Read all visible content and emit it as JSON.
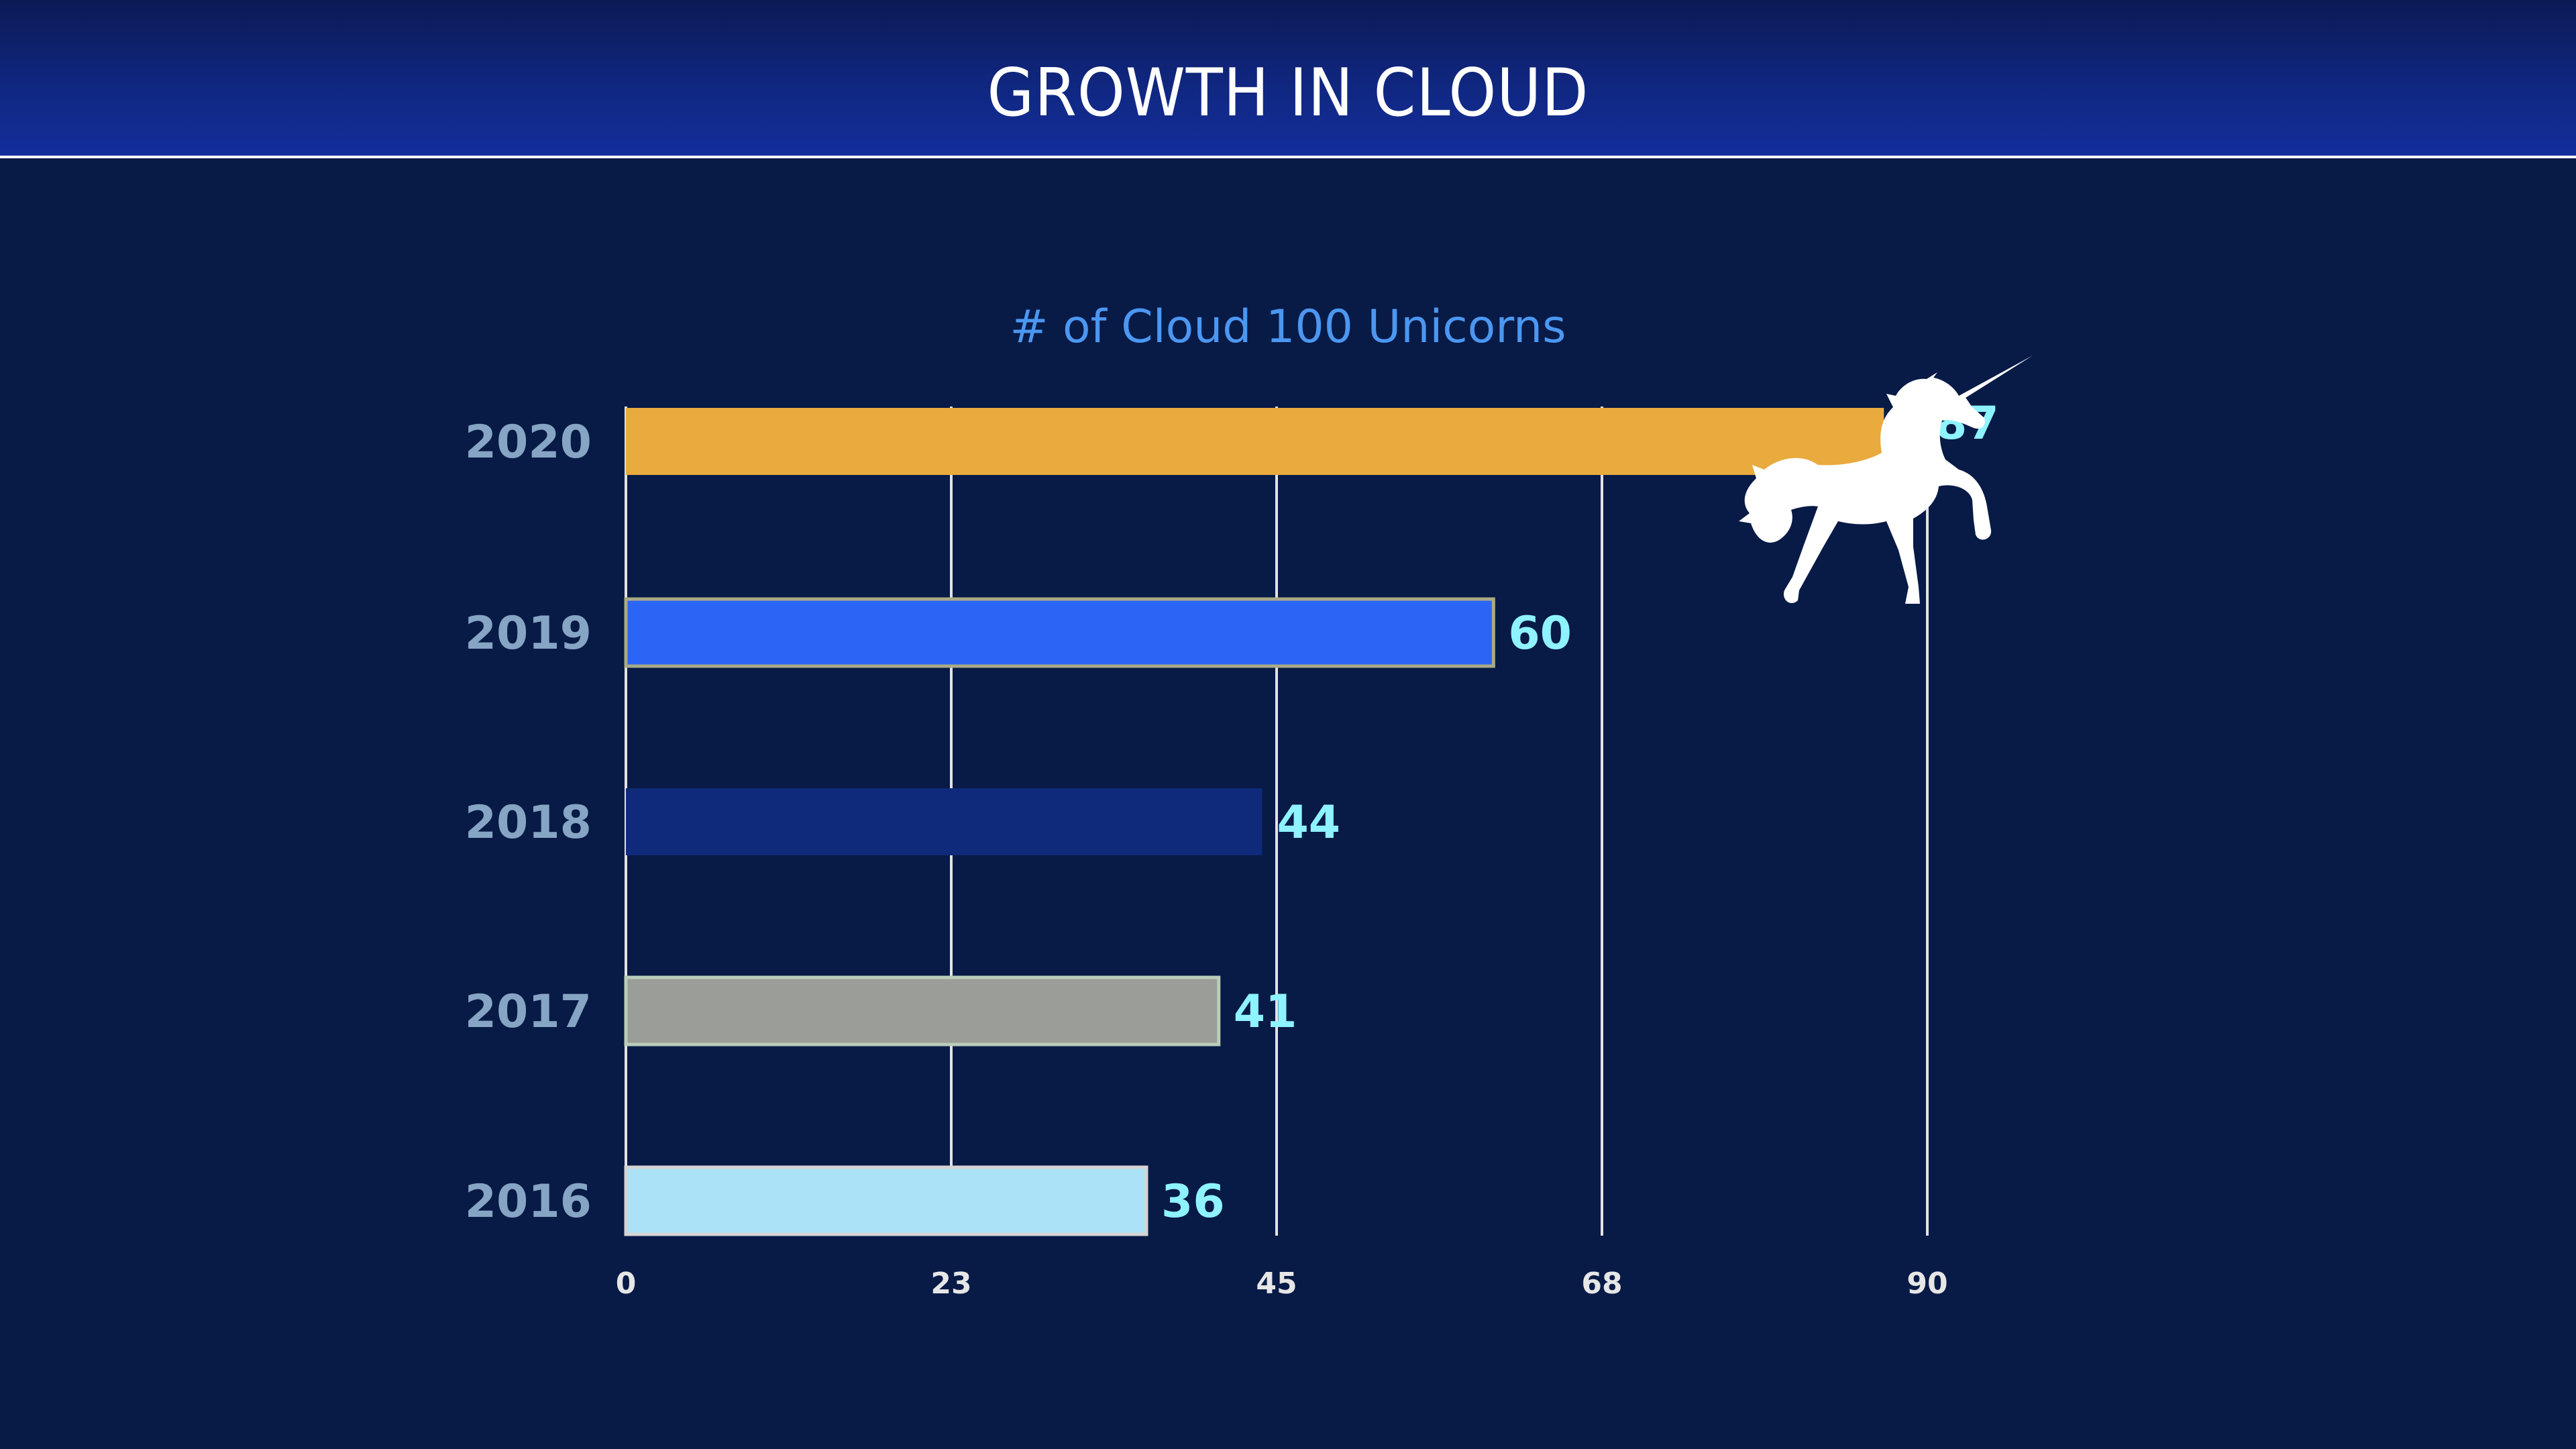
{
  "header": {
    "title": "GROWTH IN CLOUD"
  },
  "chart_data": {
    "type": "bar",
    "orientation": "horizontal",
    "title": "# of Cloud 100 Unicorns",
    "xlabel": "",
    "ylabel": "",
    "categories": [
      "2020",
      "2019",
      "2018",
      "2017",
      "2016"
    ],
    "values": [
      87,
      60,
      44,
      41,
      36
    ],
    "bar_colors": [
      "#e9aa3e",
      "#2b65f5",
      "#0f2a7a",
      "#9b9d99",
      "#abe2f7"
    ],
    "bar_outline_colors": [
      null,
      "#a9aa87",
      null,
      "#b9cdb9",
      "#d4d4d4"
    ],
    "xlim": [
      0,
      90
    ],
    "x_ticks": [
      "0",
      "23",
      "45",
      "68",
      "90"
    ],
    "x_tick_values": [
      0,
      22.5,
      45,
      67.5,
      90
    ],
    "grid": true,
    "legend": "none",
    "annotation": "unicorn silhouette at end of 2020 bar",
    "colors": {
      "background": "#081a46",
      "gridline": "#e2e2e2",
      "category_label": "#86a4c3",
      "value_label": "#8ef2ff",
      "subtitle": "#4b97f1",
      "tick_label": "#e6e6e6"
    }
  }
}
